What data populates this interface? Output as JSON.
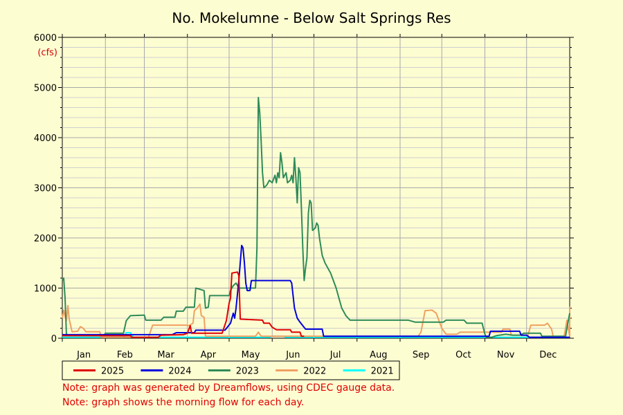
{
  "chart_data": {
    "type": "line",
    "title": "No. Mokelumne - Below Salt Springs Res",
    "y_unit": "(cfs)",
    "ylim": [
      0,
      6000
    ],
    "yticks": [
      "0",
      "1000",
      "2000",
      "3000",
      "4000",
      "5000",
      "6000"
    ],
    "xlim": [
      1,
      366
    ],
    "months": [
      "Jan",
      "Feb",
      "Mar",
      "Apr",
      "May",
      "Jun",
      "Jul",
      "Aug",
      "Sep",
      "Oct",
      "Nov",
      "Dec"
    ],
    "grid": true,
    "legend_position": "bottom",
    "series": [
      {
        "name": "2021",
        "color": "#00ffff",
        "points": [
          [
            1,
            20
          ],
          [
            45,
            20
          ],
          [
            47,
            110
          ],
          [
            50,
            110
          ],
          [
            52,
            20
          ],
          [
            150,
            20
          ],
          [
            152,
            40
          ],
          [
            160,
            40
          ],
          [
            162,
            20
          ],
          [
            366,
            20
          ]
        ]
      },
      {
        "name": "2022",
        "color": "#f0a060",
        "points": [
          [
            1,
            400
          ],
          [
            2,
            560
          ],
          [
            3,
            440
          ],
          [
            4,
            350
          ],
          [
            5,
            650
          ],
          [
            6,
            380
          ],
          [
            8,
            130
          ],
          [
            12,
            140
          ],
          [
            14,
            230
          ],
          [
            16,
            200
          ],
          [
            18,
            130
          ],
          [
            28,
            130
          ],
          [
            29,
            20
          ],
          [
            63,
            20
          ],
          [
            66,
            260
          ],
          [
            90,
            260
          ],
          [
            92,
            250
          ],
          [
            95,
            300
          ],
          [
            96,
            550
          ],
          [
            98,
            600
          ],
          [
            100,
            680
          ],
          [
            101,
            450
          ],
          [
            103,
            420
          ],
          [
            104,
            40
          ],
          [
            140,
            40
          ],
          [
            142,
            120
          ],
          [
            144,
            40
          ],
          [
            366,
            40
          ],
          [
            257,
            40
          ],
          [
            259,
            120
          ],
          [
            262,
            550
          ],
          [
            267,
            560
          ],
          [
            270,
            500
          ],
          [
            274,
            200
          ],
          [
            277,
            80
          ],
          [
            285,
            80
          ],
          [
            287,
            120
          ],
          [
            303,
            120
          ],
          [
            317,
            120
          ],
          [
            318,
            180
          ],
          [
            323,
            180
          ],
          [
            324,
            60
          ],
          [
            336,
            60
          ],
          [
            338,
            260
          ],
          [
            348,
            260
          ],
          [
            350,
            300
          ],
          [
            353,
            180
          ],
          [
            354,
            40
          ],
          [
            362,
            40
          ],
          [
            364,
            360
          ],
          [
            366,
            630
          ]
        ]
      },
      {
        "name": "2023",
        "color": "#2e8b57",
        "points": [
          [
            1,
            1150
          ],
          [
            2,
            1200
          ],
          [
            3,
            800
          ],
          [
            4,
            60
          ],
          [
            31,
            60
          ],
          [
            32,
            100
          ],
          [
            45,
            100
          ],
          [
            47,
            350
          ],
          [
            50,
            450
          ],
          [
            60,
            460
          ],
          [
            61,
            360
          ],
          [
            72,
            360
          ],
          [
            74,
            420
          ],
          [
            82,
            420
          ],
          [
            83,
            540
          ],
          [
            88,
            540
          ],
          [
            90,
            620
          ],
          [
            96,
            620
          ],
          [
            97,
            1000
          ],
          [
            103,
            950
          ],
          [
            104,
            600
          ],
          [
            106,
            620
          ],
          [
            107,
            850
          ],
          [
            121,
            850
          ],
          [
            122,
            950
          ],
          [
            124,
            1050
          ],
          [
            126,
            1100
          ],
          [
            128,
            1000
          ],
          [
            140,
            1000
          ],
          [
            141,
            1800
          ],
          [
            142,
            4800
          ],
          [
            143,
            4500
          ],
          [
            144,
            3950
          ],
          [
            145,
            3300
          ],
          [
            146,
            3000
          ],
          [
            148,
            3050
          ],
          [
            150,
            3150
          ],
          [
            152,
            3100
          ],
          [
            154,
            3250
          ],
          [
            155,
            3100
          ],
          [
            156,
            3300
          ],
          [
            157,
            3200
          ],
          [
            158,
            3700
          ],
          [
            159,
            3500
          ],
          [
            160,
            3200
          ],
          [
            162,
            3300
          ],
          [
            163,
            3100
          ],
          [
            165,
            3150
          ],
          [
            166,
            3250
          ],
          [
            167,
            3100
          ],
          [
            168,
            3600
          ],
          [
            169,
            3200
          ],
          [
            170,
            2700
          ],
          [
            171,
            3400
          ],
          [
            172,
            3300
          ],
          [
            173,
            2600
          ],
          [
            174,
            1800
          ],
          [
            175,
            1150
          ],
          [
            176,
            1400
          ],
          [
            177,
            1600
          ],
          [
            178,
            2500
          ],
          [
            179,
            2750
          ],
          [
            180,
            2700
          ],
          [
            181,
            2150
          ],
          [
            183,
            2200
          ],
          [
            184,
            2300
          ],
          [
            185,
            2250
          ],
          [
            186,
            2000
          ],
          [
            188,
            1650
          ],
          [
            190,
            1500
          ],
          [
            194,
            1300
          ],
          [
            196,
            1150
          ],
          [
            198,
            1000
          ],
          [
            200,
            800
          ],
          [
            202,
            600
          ],
          [
            205,
            450
          ],
          [
            208,
            360
          ],
          [
            250,
            360
          ],
          [
            255,
            320
          ],
          [
            275,
            320
          ],
          [
            277,
            360
          ],
          [
            290,
            360
          ],
          [
            292,
            300
          ],
          [
            303,
            300
          ],
          [
            305,
            80
          ],
          [
            306,
            20
          ],
          [
            310,
            20
          ],
          [
            313,
            50
          ],
          [
            320,
            80
          ],
          [
            325,
            60
          ],
          [
            330,
            60
          ],
          [
            333,
            100
          ],
          [
            345,
            100
          ],
          [
            346,
            40
          ],
          [
            363,
            40
          ],
          [
            364,
            200
          ],
          [
            366,
            500
          ]
        ]
      },
      {
        "name": "2024",
        "color": "#0000dd",
        "points": [
          [
            1,
            70
          ],
          [
            80,
            70
          ],
          [
            83,
            110
          ],
          [
            96,
            110
          ],
          [
            97,
            160
          ],
          [
            118,
            160
          ],
          [
            122,
            300
          ],
          [
            124,
            500
          ],
          [
            125,
            400
          ],
          [
            126,
            600
          ],
          [
            128,
            1150
          ],
          [
            130,
            1850
          ],
          [
            131,
            1800
          ],
          [
            132,
            1500
          ],
          [
            133,
            1100
          ],
          [
            134,
            950
          ],
          [
            136,
            950
          ],
          [
            137,
            1150
          ],
          [
            165,
            1150
          ],
          [
            166,
            1100
          ],
          [
            168,
            600
          ],
          [
            170,
            400
          ],
          [
            172,
            320
          ],
          [
            176,
            180
          ],
          [
            188,
            180
          ],
          [
            189,
            40
          ],
          [
            308,
            40
          ],
          [
            309,
            140
          ],
          [
            330,
            140
          ],
          [
            331,
            60
          ],
          [
            335,
            60
          ],
          [
            337,
            20
          ],
          [
            366,
            20
          ]
        ]
      },
      {
        "name": "2025",
        "color": "#e00000",
        "points": [
          [
            1,
            50
          ],
          [
            50,
            50
          ],
          [
            51,
            20
          ],
          [
            70,
            20
          ],
          [
            72,
            60
          ],
          [
            88,
            70
          ],
          [
            91,
            100
          ],
          [
            93,
            250
          ],
          [
            94,
            100
          ],
          [
            116,
            100
          ],
          [
            119,
            350
          ],
          [
            121,
            700
          ],
          [
            122,
            800
          ],
          [
            123,
            1300
          ],
          [
            127,
            1320
          ],
          [
            128,
            1250
          ],
          [
            129,
            380
          ],
          [
            145,
            360
          ],
          [
            146,
            300
          ],
          [
            150,
            300
          ],
          [
            152,
            220
          ],
          [
            155,
            170
          ],
          [
            165,
            170
          ],
          [
            166,
            120
          ],
          [
            172,
            120
          ],
          [
            173,
            40
          ],
          [
            175,
            40
          ]
        ]
      }
    ]
  },
  "notes": [
    "Note: graph was generated by Dreamflows, using CDEC gauge data.",
    "Note: graph shows the morning flow for each day."
  ]
}
